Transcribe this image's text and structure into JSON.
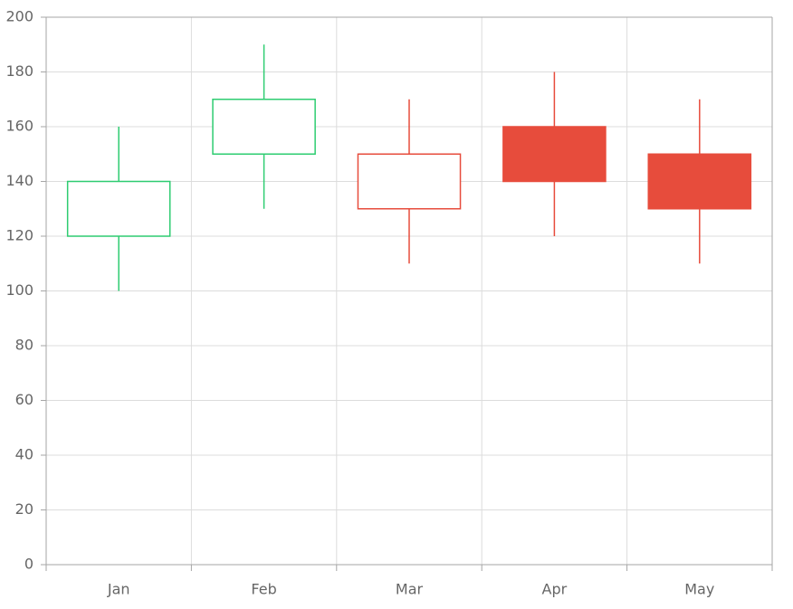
{
  "chart_data": {
    "type": "candlestick",
    "categories": [
      "Jan",
      "Feb",
      "Mar",
      "Apr",
      "May"
    ],
    "open": [
      120,
      150,
      130,
      160,
      150
    ],
    "high": [
      160,
      190,
      170,
      180,
      170
    ],
    "low": [
      100,
      130,
      110,
      120,
      110
    ],
    "close": [
      140,
      170,
      150,
      140,
      130
    ],
    "increasing_color": "#2ecc71",
    "decreasing_color": "#e74c3c",
    "ylim": [
      0,
      200
    ],
    "yticks": [
      0,
      20,
      40,
      60,
      80,
      100,
      120,
      140,
      160,
      180,
      200
    ],
    "grid": true
  }
}
